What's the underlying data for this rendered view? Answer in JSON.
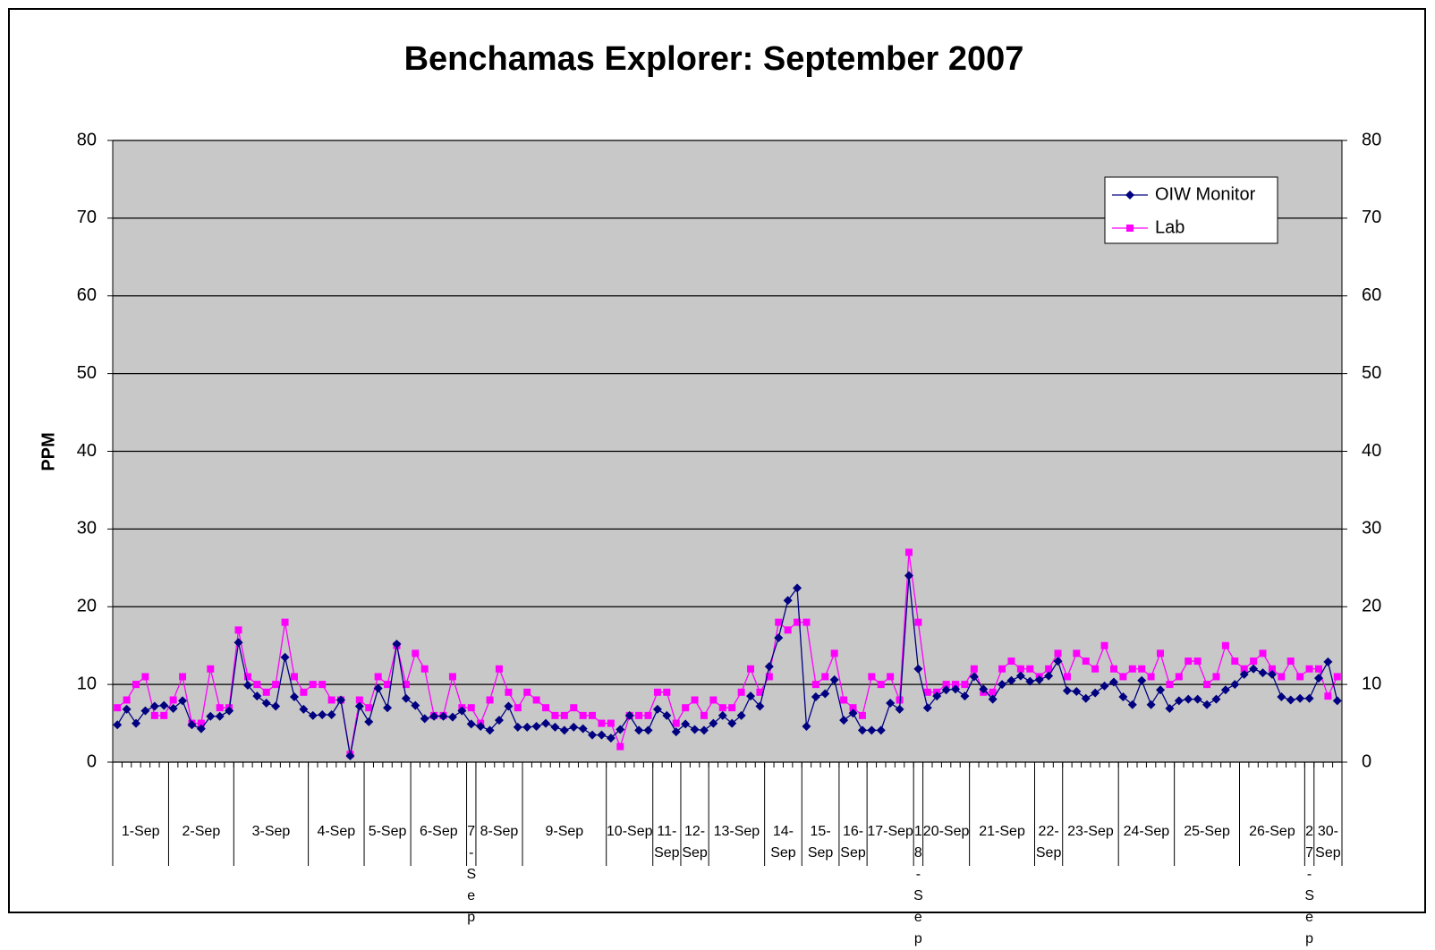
{
  "chart_data": {
    "type": "line",
    "title": "Benchamas Explorer: September 2007",
    "y_label": "PPM",
    "categories": [
      null,
      null,
      null,
      null,
      null,
      null,
      null,
      null,
      null,
      null,
      null,
      null,
      null,
      null,
      null,
      null,
      null,
      null,
      null,
      null,
      null,
      null,
      null,
      null,
      null,
      null,
      null,
      null,
      null,
      null,
      null,
      null,
      null,
      null,
      null,
      null,
      null,
      null,
      null,
      null,
      null,
      null,
      null,
      null,
      null,
      null,
      null,
      null,
      null,
      null,
      null,
      null,
      null,
      null,
      null,
      null,
      null,
      null,
      null,
      null,
      null,
      null,
      null,
      null,
      null,
      null,
      null,
      null,
      null,
      null,
      null,
      null,
      null,
      null,
      null,
      null,
      null,
      null,
      null,
      null,
      null,
      null,
      null,
      null,
      null,
      null,
      null,
      null,
      null,
      null,
      null,
      null,
      null,
      null,
      null,
      null,
      null,
      null,
      null,
      null,
      null,
      null,
      null,
      null,
      null,
      null,
      null,
      null,
      null,
      null,
      null,
      null,
      null,
      null,
      null,
      null,
      null,
      null,
      null,
      null,
      null,
      null,
      null,
      null,
      null,
      null,
      null,
      null,
      null,
      null,
      null,
      null
    ],
    "groups": [
      {
        "label": "1-Sep",
        "size": 6
      },
      {
        "label": "2-Sep",
        "size": 7
      },
      {
        "label": "3-Sep",
        "size": 8
      },
      {
        "label": "4-Sep",
        "size": 6
      },
      {
        "label": "5-Sep",
        "size": 5
      },
      {
        "label": "6-Sep",
        "size": 6
      },
      {
        "label": "7-Sep",
        "size": 1
      },
      {
        "label": "8-Sep",
        "size": 5
      },
      {
        "label": "9-Sep",
        "size": 9
      },
      {
        "label": "10-Sep",
        "size": 5
      },
      {
        "label": "11-Sep",
        "size": 3
      },
      {
        "label": "12-Sep",
        "size": 3
      },
      {
        "label": "13-Sep",
        "size": 6
      },
      {
        "label": "14-Sep",
        "size": 4
      },
      {
        "label": "15-Sep",
        "size": 4
      },
      {
        "label": "16-Sep",
        "size": 3
      },
      {
        "label": "17-Sep",
        "size": 5
      },
      {
        "label": "18-Sep",
        "size": 1
      },
      {
        "label": "20-Sep",
        "size": 5
      },
      {
        "label": "21-Sep",
        "size": 7
      },
      {
        "label": "22-Sep",
        "size": 3
      },
      {
        "label": "23-Sep",
        "size": 6
      },
      {
        "label": "24-Sep",
        "size": 6
      },
      {
        "label": "25-Sep",
        "size": 7
      },
      {
        "label": "26-Sep",
        "size": 7
      },
      {
        "label": "27-Sep",
        "size": 1
      },
      {
        "label": "30-Sep",
        "size": 3
      }
    ],
    "series": [
      {
        "name": "OIW Monitor",
        "color": "#000080",
        "marker": "diamond",
        "values": [
          4.8,
          6.8,
          5.0,
          6.6,
          7.2,
          7.3,
          6.9,
          7.9,
          4.8,
          4.3,
          5.9,
          5.9,
          6.6,
          15.4,
          9.9,
          8.5,
          7.6,
          7.2,
          13.5,
          8.4,
          6.8,
          6.0,
          6.1,
          6.1,
          8.0,
          0.8,
          7.2,
          5.2,
          9.5,
          7.0,
          15.2,
          8.2,
          7.3,
          5.6,
          5.9,
          5.9,
          5.8,
          6.6,
          4.9,
          4.6,
          4.1,
          5.4,
          7.2,
          4.5,
          4.5,
          4.6,
          5.0,
          4.5,
          4.1,
          4.5,
          4.3,
          3.5,
          3.5,
          3.1,
          4.2,
          6.0,
          4.1,
          4.1,
          6.8,
          6.0,
          3.9,
          4.9,
          4.2,
          4.1,
          5.0,
          6.0,
          5.0,
          6.0,
          8.5,
          7.2,
          12.3,
          16.0,
          20.8,
          22.4,
          4.6,
          8.4,
          8.8,
          10.6,
          5.4,
          6.3,
          4.1,
          4.1,
          4.1,
          7.6,
          6.8,
          24.0,
          12.0,
          7.0,
          8.5,
          9.3,
          9.4,
          8.5,
          11.0,
          9.4,
          8.1,
          10.0,
          10.5,
          11.1,
          10.4,
          10.6,
          11.1,
          13.0,
          9.2,
          9.1,
          8.2,
          8.9,
          9.8,
          10.3,
          8.4,
          7.4,
          10.5,
          7.4,
          9.3,
          6.9,
          7.9,
          8.1,
          8.1,
          7.4,
          8.1,
          9.3,
          10.0,
          11.3,
          12.0,
          11.5,
          11.3,
          8.4,
          8.0,
          8.2,
          8.2,
          10.8,
          12.9,
          7.9
        ]
      },
      {
        "name": "Lab",
        "color": "#ff00ff",
        "marker": "square",
        "values": [
          7,
          8,
          10,
          11,
          6,
          6,
          8,
          11,
          5,
          5,
          12,
          7,
          7,
          17,
          11,
          10,
          9,
          10,
          18,
          11,
          9,
          10,
          10,
          8,
          8,
          1,
          8,
          7,
          11,
          10,
          15,
          10,
          14,
          12,
          6,
          6,
          11,
          7,
          7,
          5,
          8,
          12,
          9,
          7,
          9,
          8,
          7,
          6,
          6,
          7,
          6,
          6,
          5,
          5,
          2,
          6,
          6,
          6,
          9,
          9,
          5,
          7,
          8,
          6,
          8,
          7,
          7,
          9,
          12,
          9,
          11,
          18,
          17,
          18,
          18,
          10,
          11,
          14,
          8,
          7,
          6,
          11,
          10,
          11,
          8,
          27,
          18,
          9,
          9,
          10,
          10,
          10,
          12,
          9,
          9,
          12,
          13,
          12,
          12,
          11,
          12,
          14,
          11,
          14,
          13,
          12,
          15,
          12,
          11,
          12,
          12,
          11,
          14,
          10,
          11,
          13,
          13,
          10,
          11,
          15,
          13,
          12,
          13,
          14,
          12,
          11,
          13,
          11,
          12,
          12,
          8.5,
          11
        ]
      }
    ],
    "ylim": [
      0,
      80
    ],
    "yticks": [
      0,
      10,
      20,
      30,
      40,
      50,
      60,
      70,
      80
    ],
    "y2lim": [
      0,
      80
    ],
    "y2ticks": [
      0,
      10,
      20,
      30,
      40,
      50,
      60,
      70,
      80
    ],
    "grid": true,
    "legend": "top-right",
    "plot_background": "#c8c8c8"
  }
}
